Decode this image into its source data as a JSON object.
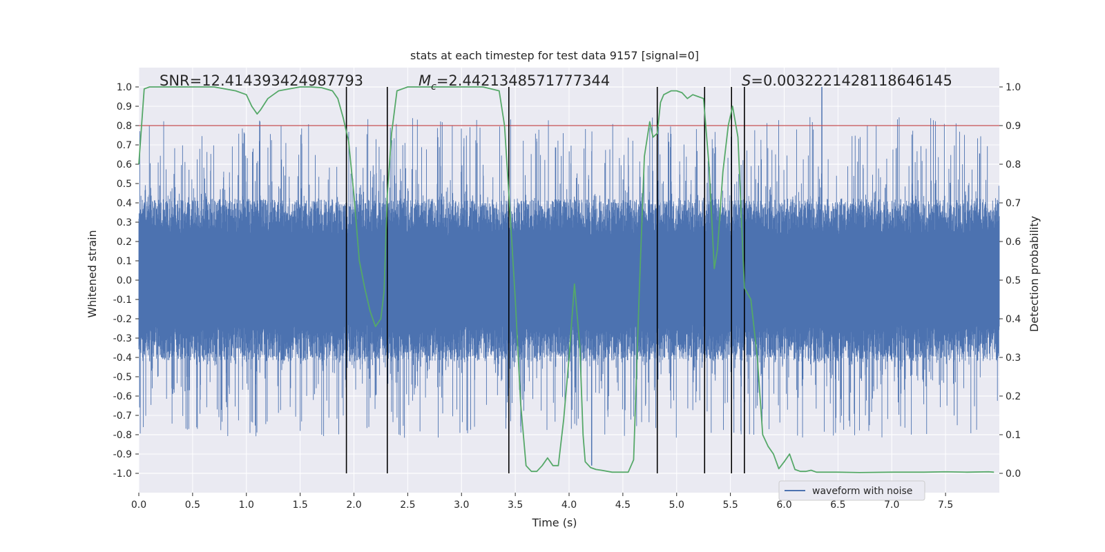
{
  "chart_data": {
    "type": "line",
    "title": "stats at each timestep for test data 9157 [signal=0]",
    "xlabel": "Time (s)",
    "ylabel": "Whitened strain",
    "y2label": "Detection probability",
    "xlim": [
      0.0,
      8.0
    ],
    "ylim": [
      -1.1,
      1.1
    ],
    "y2lim": [
      -0.05,
      1.05
    ],
    "xticks": [
      "0.0",
      "0.5",
      "1.0",
      "1.5",
      "2.0",
      "2.5",
      "3.0",
      "3.5",
      "4.0",
      "4.5",
      "5.0",
      "5.5",
      "6.0",
      "6.5",
      "7.0",
      "7.5"
    ],
    "yticks": [
      "1.0",
      "0.9",
      "0.8",
      "0.7",
      "0.6",
      "0.5",
      "0.4",
      "0.3",
      "0.2",
      "0.1",
      "0.0",
      "-0.1",
      "-0.2",
      "-0.3",
      "-0.4",
      "-0.5",
      "-0.6",
      "-0.7",
      "-0.8",
      "-0.9",
      "-1.0"
    ],
    "y2ticks": [
      "1.0",
      "0.9",
      "0.8",
      "0.7",
      "0.6",
      "0.5",
      "0.4",
      "0.3",
      "0.2",
      "0.1",
      "0.0"
    ],
    "grid": true,
    "legend": {
      "placement": "lower-right",
      "entries": [
        "waveform with noise"
      ]
    },
    "annotations": {
      "snr": "SNR=12.414393424987793",
      "mc_sym": "M",
      "mc_sub": "c",
      "mc_value": "=2.4421348571777344",
      "s_sym": "S",
      "s_value": "=0.0032221428118646145"
    },
    "threshold": {
      "axis": "y2",
      "value": 0.9,
      "color": "#c44e52"
    },
    "vlines": [
      1.93,
      2.31,
      3.44,
      4.82,
      5.26,
      5.51,
      5.63
    ],
    "series": [
      {
        "name": "waveform with noise",
        "kind": "noise",
        "axis": "y",
        "color": "#4c72b0",
        "core_amplitude": 0.42,
        "peak_max": 1.0,
        "peak_min": -0.96
      },
      {
        "axis": "y2",
        "color": "#55a868",
        "x": [
          0.0,
          0.05,
          0.1,
          0.2,
          0.3,
          0.5,
          0.7,
          0.9,
          1.0,
          1.05,
          1.1,
          1.13,
          1.2,
          1.25,
          1.3,
          1.4,
          1.5,
          1.6,
          1.7,
          1.8,
          1.85,
          1.9,
          1.95,
          2.0,
          2.05,
          2.1,
          2.15,
          2.2,
          2.25,
          2.28,
          2.31,
          2.35,
          2.4,
          2.45,
          2.5,
          2.6,
          2.8,
          3.0,
          3.2,
          3.35,
          3.4,
          3.45,
          3.5,
          3.55,
          3.6,
          3.65,
          3.7,
          3.75,
          3.8,
          3.85,
          3.9,
          3.95,
          4.0,
          4.05,
          4.1,
          4.13,
          4.15,
          4.2,
          4.25,
          4.3,
          4.4,
          4.5,
          4.55,
          4.6,
          4.65,
          4.7,
          4.75,
          4.78,
          4.82,
          4.85,
          4.88,
          4.95,
          5.0,
          5.05,
          5.1,
          5.15,
          5.2,
          5.25,
          5.3,
          5.35,
          5.38,
          5.43,
          5.48,
          5.52,
          5.57,
          5.63,
          5.69,
          5.75,
          5.8,
          5.85,
          5.9,
          5.95,
          6.0,
          6.05,
          6.1,
          6.15,
          6.2,
          6.25,
          6.3,
          6.4,
          6.5,
          6.7,
          7.0,
          7.3,
          7.5,
          7.7,
          7.9,
          7.95
        ],
        "y": [
          0.8,
          0.995,
          1.0,
          1.0,
          1.0,
          1.0,
          1.0,
          0.99,
          0.98,
          0.95,
          0.93,
          0.94,
          0.97,
          0.98,
          0.99,
          0.995,
          1.0,
          1.0,
          0.998,
          0.99,
          0.97,
          0.92,
          0.86,
          0.72,
          0.55,
          0.48,
          0.42,
          0.38,
          0.4,
          0.47,
          0.72,
          0.88,
          0.99,
          0.995,
          1.0,
          1.0,
          1.0,
          1.0,
          1.0,
          0.99,
          0.9,
          0.68,
          0.45,
          0.18,
          0.02,
          0.005,
          0.005,
          0.02,
          0.04,
          0.02,
          0.02,
          0.14,
          0.3,
          0.49,
          0.33,
          0.1,
          0.03,
          0.015,
          0.01,
          0.008,
          0.003,
          0.003,
          0.003,
          0.035,
          0.45,
          0.82,
          0.91,
          0.87,
          0.88,
          0.96,
          0.98,
          0.99,
          0.99,
          0.985,
          0.97,
          0.98,
          0.975,
          0.97,
          0.8,
          0.53,
          0.58,
          0.78,
          0.9,
          0.95,
          0.87,
          0.48,
          0.45,
          0.3,
          0.1,
          0.07,
          0.05,
          0.012,
          0.03,
          0.05,
          0.01,
          0.005,
          0.005,
          0.008,
          0.003,
          0.003,
          0.003,
          0.002,
          0.003,
          0.003,
          0.004,
          0.003,
          0.004,
          0.003
        ]
      }
    ]
  }
}
